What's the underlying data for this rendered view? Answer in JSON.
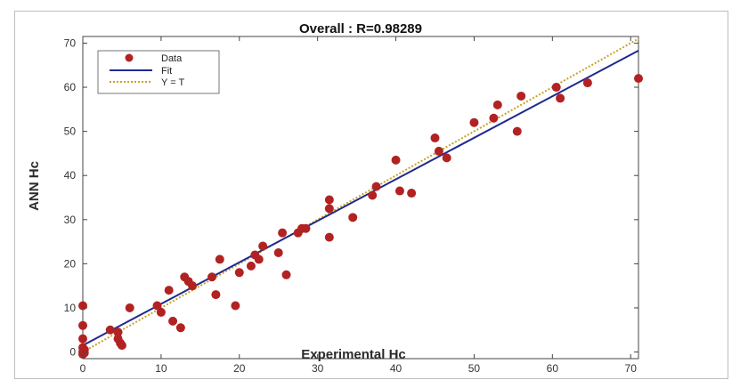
{
  "chart_data": {
    "type": "scatter",
    "title": "Overall : R=0.98289",
    "xlabel": "Experimental Hc",
    "ylabel": "ANN Hc",
    "xlim": [
      0,
      71
    ],
    "ylim": [
      -1.5,
      71.5
    ],
    "xticks": [
      0,
      10,
      20,
      30,
      40,
      50,
      60,
      70
    ],
    "yticks": [
      0,
      10,
      20,
      30,
      40,
      50,
      60,
      70
    ],
    "grid": false,
    "legend_position": "top-left",
    "legend": [
      "Data",
      "Fit",
      "Y = T"
    ],
    "colors": {
      "data": "#b22222",
      "fit": "#1f2a8f",
      "identity": "#c9a227"
    },
    "fit_line": {
      "x": [
        0,
        71
      ],
      "y": [
        1.5,
        68.3
      ]
    },
    "identity_line": {
      "x": [
        0,
        71
      ],
      "y": [
        0,
        71
      ]
    },
    "points": [
      [
        0,
        10.5
      ],
      [
        0,
        6
      ],
      [
        0,
        3
      ],
      [
        0,
        1
      ],
      [
        0,
        0
      ],
      [
        0,
        -0.5
      ],
      [
        0.2,
        0.5
      ],
      [
        0.2,
        -0.2
      ],
      [
        3.5,
        5
      ],
      [
        4.5,
        4.5
      ],
      [
        4.5,
        3
      ],
      [
        4.8,
        2
      ],
      [
        5,
        1.5
      ],
      [
        6,
        10
      ],
      [
        9.5,
        10.5
      ],
      [
        10,
        9
      ],
      [
        11,
        14
      ],
      [
        11.5,
        7
      ],
      [
        12.5,
        5.5
      ],
      [
        13,
        17
      ],
      [
        13.5,
        16
      ],
      [
        14,
        15
      ],
      [
        16.5,
        17
      ],
      [
        17,
        13
      ],
      [
        17.5,
        21
      ],
      [
        19.5,
        10.5
      ],
      [
        20,
        18
      ],
      [
        21.5,
        19.5
      ],
      [
        22,
        22
      ],
      [
        22.5,
        21
      ],
      [
        23,
        24
      ],
      [
        25,
        22.5
      ],
      [
        25.5,
        27
      ],
      [
        26,
        17.5
      ],
      [
        27.5,
        27
      ],
      [
        28,
        28
      ],
      [
        28.5,
        28
      ],
      [
        31.5,
        34.5
      ],
      [
        31.5,
        32.5
      ],
      [
        31.5,
        26
      ],
      [
        34.5,
        30.5
      ],
      [
        37,
        35.5
      ],
      [
        37.5,
        37.5
      ],
      [
        40,
        43.5
      ],
      [
        40.5,
        36.5
      ],
      [
        42,
        36
      ],
      [
        45,
        48.5
      ],
      [
        45.5,
        45.5
      ],
      [
        46.5,
        44
      ],
      [
        50,
        52
      ],
      [
        52.5,
        53
      ],
      [
        53,
        56
      ],
      [
        55.5,
        50
      ],
      [
        56,
        58
      ],
      [
        60.5,
        60
      ],
      [
        61,
        57.5
      ],
      [
        64.5,
        61
      ],
      [
        71,
        62
      ]
    ]
  }
}
